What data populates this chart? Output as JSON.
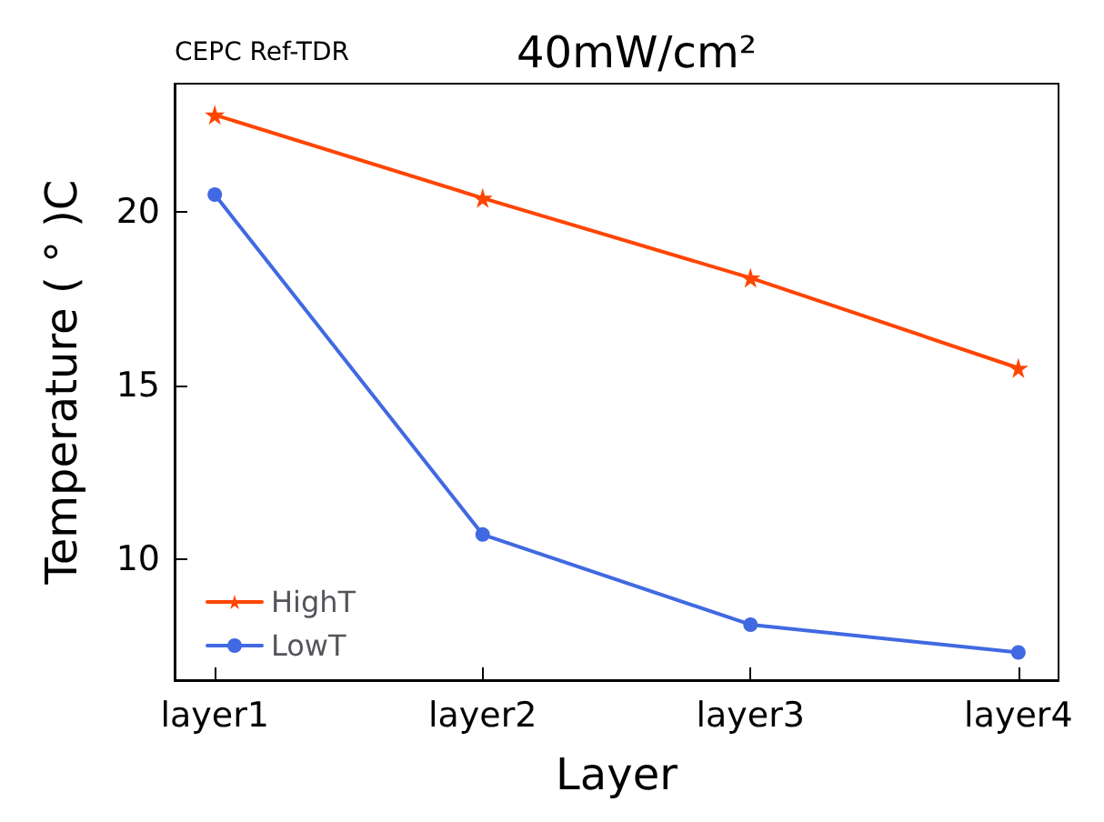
{
  "chart_data": {
    "type": "line",
    "title": "40mW/cm²",
    "xlabel": "Layer",
    "ylabel": "Temperature ( ° )C",
    "annotations": [
      "CEPC Ref-TDR"
    ],
    "categories": [
      "layer1",
      "layer2",
      "layer3",
      "layer4"
    ],
    "series": [
      {
        "name": "HighT",
        "color": "#ff4500",
        "marker": "star",
        "values": [
          22.8,
          20.4,
          18.1,
          15.5
        ]
      },
      {
        "name": "LowT",
        "color": "#4169e1",
        "marker": "circle",
        "values": [
          20.5,
          10.7,
          8.1,
          7.3
        ]
      }
    ],
    "ylim": [
      6.5,
      23.7
    ],
    "yticks": [
      10,
      15,
      20
    ],
    "grid": false,
    "legend": "bottom left",
    "line_style": "solid"
  }
}
